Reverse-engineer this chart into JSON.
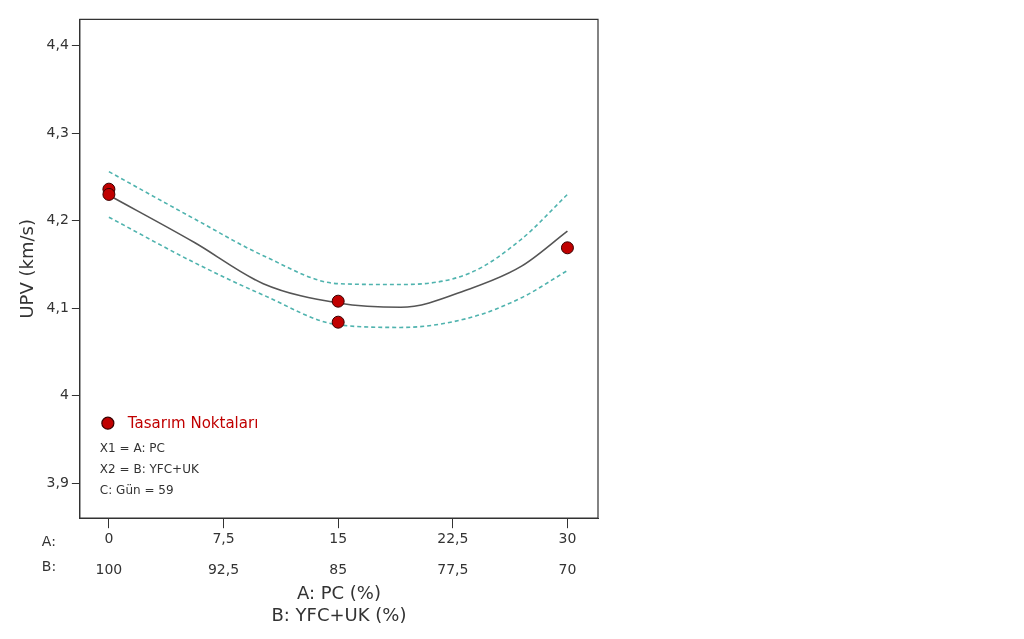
{
  "chart_data": {
    "type": "scatter",
    "ylabel": "UPV (km/s)",
    "xlabel": "A: PC (%)",
    "x2label": "B: YFC+UK (%)",
    "xlim": [
      -1.9,
      32
    ],
    "xticks": [
      0,
      {
        "value": 7.5,
        "label": "7,5"
      },
      15,
      {
        "value": 22.5,
        "label": "22,5"
      },
      30
    ],
    "x2lim": [
      101.9,
      68
    ],
    "x2ticks": [
      100,
      {
        "value": 92.5,
        "label": "92,5"
      },
      85,
      {
        "value": 77.5,
        "label": "77,5"
      },
      70
    ],
    "ylim": [
      3.86,
      4.43
    ],
    "yticks": [
      {
        "value": 3.9,
        "label": "3,9"
      },
      4,
      {
        "value": 4.1,
        "label": "4,1"
      },
      {
        "value": 4.2,
        "label": "4,2"
      },
      {
        "value": 4.3,
        "label": "4,3"
      },
      {
        "value": 4.4,
        "label": "4,4"
      }
    ],
    "grid": false,
    "legend": "bottom left",
    "series": [
      {
        "type": "line",
        "color": "#555555",
        "line_style": "solid",
        "marker": "none",
        "x": [
          0,
          5.6,
          10.1,
          15,
          19.1,
          23.6,
          27,
          30
        ],
        "values": [
          4.229,
          4.175,
          4.128,
          4.106,
          4.101,
          4.122,
          4.148,
          4.188
        ]
      },
      {
        "type": "line",
        "color": "#4fb3ae",
        "line_style": "dashed",
        "marker": "none",
        "x": [
          0,
          5.6,
          10.1,
          15,
          19.1,
          23.6,
          27,
          30
        ],
        "values": [
          4.256,
          4.202,
          4.16,
          4.128,
          4.127,
          4.14,
          4.179,
          4.23
        ]
      },
      {
        "type": "line",
        "color": "#4fb3ae",
        "line_style": "dashed",
        "marker": "none",
        "x": [
          0,
          5.6,
          10.1,
          15,
          19.1,
          23.6,
          27,
          30
        ],
        "values": [
          4.204,
          4.152,
          4.115,
          4.081,
          4.078,
          4.089,
          4.112,
          4.143
        ]
      },
      {
        "name": "Tasarım Noktaları",
        "color": "#c00000",
        "marker": "circle",
        "x": [
          0,
          0,
          15,
          15,
          30
        ],
        "values": [
          4.236,
          4.23,
          4.108,
          4.084,
          4.169
        ]
      }
    ],
    "annotations": [
      "A:",
      "B:",
      "X1 = A: PC",
      "X2 = B: YFC+UK",
      "C: Gün = 59"
    ]
  }
}
